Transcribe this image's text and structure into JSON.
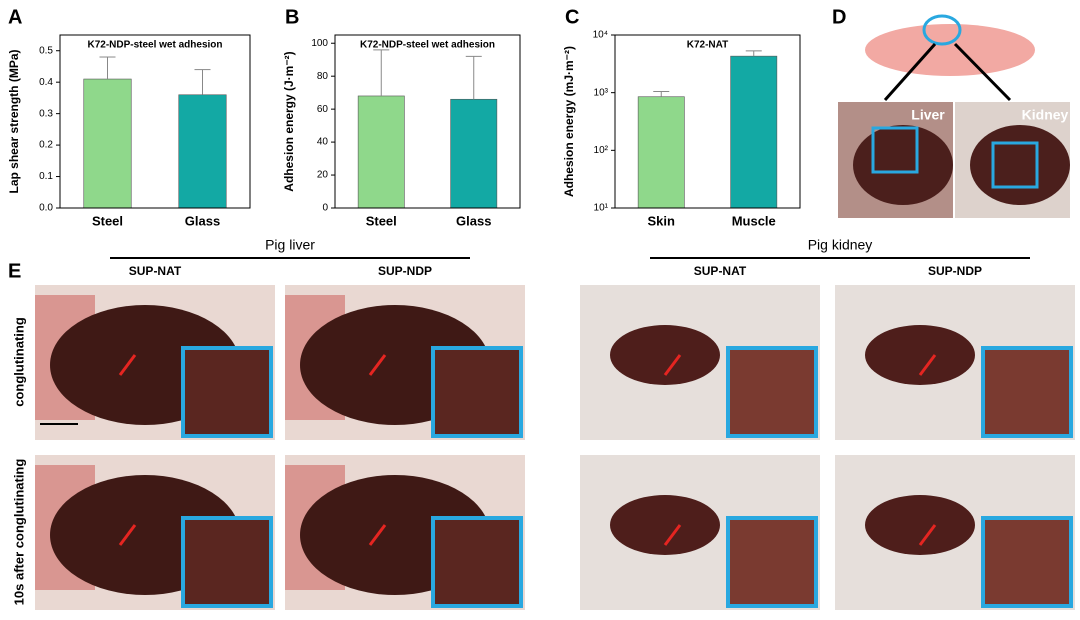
{
  "chart_data": [
    {
      "type": "bar",
      "label": "A",
      "title": "K72-NDP-steel wet adhesion",
      "y_label": "Lap shear strength (MPa)",
      "categories": [
        "Steel",
        "Glass"
      ],
      "values": [
        0.41,
        0.36
      ],
      "errors": [
        0.07,
        0.08
      ],
      "colors": [
        "#8fd88b",
        "#13a9a4"
      ],
      "ylim": [
        0,
        0.55
      ],
      "yticks": [
        {
          "value": 0,
          "label": "0.0"
        },
        0.1,
        0.2,
        0.3,
        0.4,
        0.5
      ]
    },
    {
      "type": "bar",
      "label": "B",
      "title": "K72-NDP-steel wet adhesion",
      "y_label": "Adhesion energy (J·m⁻²)",
      "categories": [
        "Steel",
        "Glass"
      ],
      "values": [
        68,
        66
      ],
      "errors": [
        28,
        26
      ],
      "colors": [
        "#8fd88b",
        "#13a9a4"
      ],
      "ylim": [
        0,
        105
      ],
      "yticks": [
        0,
        20,
        40,
        60,
        80,
        100
      ]
    },
    {
      "type": "bar",
      "label": "C",
      "title": "K72-NAT",
      "y_label": "Adhesion energy (mJ·m⁻²)",
      "log_scale": true,
      "categories": [
        "Skin",
        "Muscle"
      ],
      "values": [
        850,
        4300
      ],
      "errors": [
        200,
        1000
      ],
      "colors": [
        "#8fd88b",
        "#13a9a4"
      ],
      "ylim": [
        10,
        10000
      ],
      "yticks": [
        {
          "value": 10,
          "label": "10¹"
        },
        {
          "value": 100,
          "label": "10²"
        },
        {
          "value": 1000,
          "label": "10³"
        },
        {
          "value": 10000,
          "label": "10⁴"
        }
      ]
    }
  ],
  "panel_d": {
    "label": "D",
    "organs": [
      "Liver",
      "Kidney"
    ]
  },
  "panel_e": {
    "label": "E",
    "groups": [
      {
        "title": "Pig liver",
        "columns": [
          "SUP-NAT",
          "SUP-NDP"
        ]
      },
      {
        "title": "Pig kidney",
        "columns": [
          "SUP-NAT",
          "SUP-NDP"
        ]
      }
    ],
    "rows": [
      "conglutinating",
      "10s after conglutinating"
    ]
  }
}
